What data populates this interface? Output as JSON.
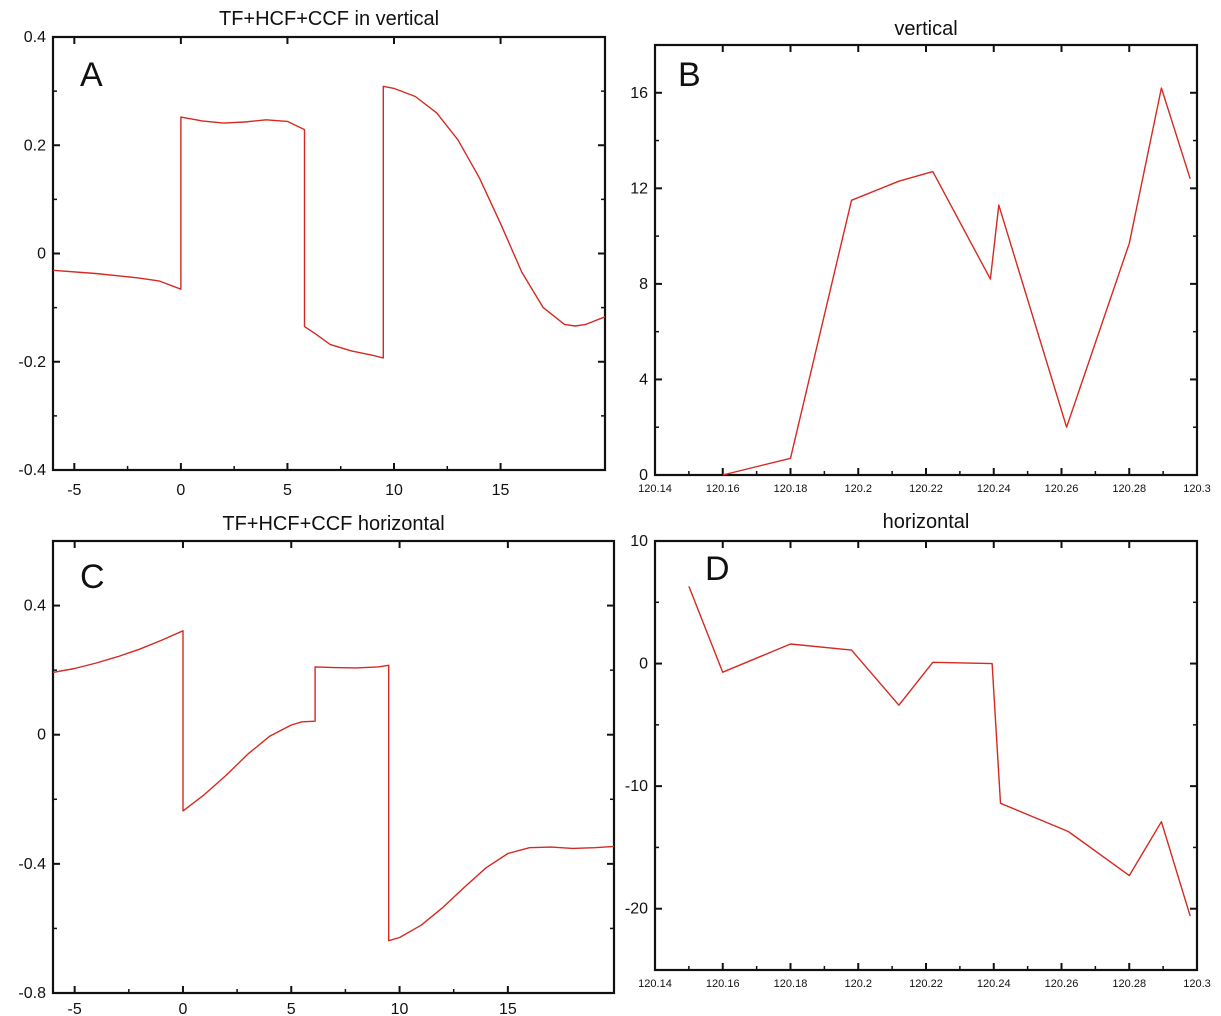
{
  "colors": {
    "line": "#d42a22",
    "axis": "#111111",
    "background": "#ffffff"
  },
  "chart_data": [
    {
      "panel": "A",
      "type": "line",
      "title": "TF+HCF+CCF in vertical",
      "xlabel": "",
      "ylabel": "",
      "xlim": [
        -6,
        19.9
      ],
      "ylim": [
        -0.4,
        0.4
      ],
      "xticks": [
        -5,
        0,
        5,
        10,
        15
      ],
      "yticks": [
        -0.4,
        -0.2,
        0,
        0.2,
        0.4
      ],
      "xtick_labels": [
        "-5",
        "0",
        "5",
        "10",
        "15"
      ],
      "ytick_labels": [
        "-0.4",
        "-0.2",
        "0",
        "0.2",
        "0.4"
      ],
      "grid": false,
      "series": [
        {
          "x": [
            -6,
            -4,
            -2,
            -1,
            0,
            0,
            1,
            2,
            3,
            4,
            5,
            5.8,
            5.8,
            6.3,
            7,
            8,
            9,
            9.5,
            9.5,
            10,
            11,
            12,
            13,
            14,
            15,
            16,
            17,
            18,
            18.5,
            19,
            19.9
          ],
          "y": [
            -0.031,
            -0.037,
            -0.045,
            -0.051,
            -0.066,
            0.252,
            0.245,
            0.241,
            0.243,
            0.247,
            0.244,
            0.229,
            -0.135,
            -0.148,
            -0.168,
            -0.18,
            -0.188,
            -0.193,
            0.309,
            0.305,
            0.29,
            0.26,
            0.21,
            0.14,
            0.055,
            -0.035,
            -0.1,
            -0.131,
            -0.134,
            -0.131,
            -0.117
          ]
        }
      ]
    },
    {
      "panel": "B",
      "type": "line",
      "title": "vertical",
      "xlabel": "",
      "ylabel": "",
      "xlim": [
        120.14,
        120.3
      ],
      "ylim": [
        0,
        18
      ],
      "xticks": [
        120.14,
        120.16,
        120.18,
        120.2,
        120.22,
        120.24,
        120.26,
        120.28,
        120.3
      ],
      "yticks": [
        0,
        4,
        8,
        12,
        16
      ],
      "xtick_labels": [
        "120.14",
        "120.16",
        "120.18",
        "120.2",
        "120.22",
        "120.24",
        "120.26",
        "120.28",
        "120.3"
      ],
      "ytick_labels": [
        "0",
        "4",
        "8",
        "12",
        "16"
      ],
      "grid": false,
      "series": [
        {
          "x": [
            120.16,
            120.18,
            120.198,
            120.212,
            120.222,
            120.239,
            120.2415,
            120.2615,
            120.28,
            120.2895,
            120.298
          ],
          "y": [
            0.0,
            0.7,
            11.5,
            12.3,
            12.7,
            8.2,
            11.3,
            2.0,
            9.7,
            16.2,
            12.4
          ]
        }
      ]
    },
    {
      "panel": "C",
      "type": "line",
      "title": "TF+HCF+CCF horizontal",
      "xlabel": "",
      "ylabel": "",
      "xlim": [
        -6,
        19.9
      ],
      "ylim": [
        -0.8,
        0.6
      ],
      "xticks": [
        -5,
        0,
        5,
        10,
        15
      ],
      "yticks": [
        -0.8,
        -0.4,
        0,
        0.4
      ],
      "xtick_labels": [
        "-5",
        "0",
        "5",
        "10",
        "15"
      ],
      "ytick_labels": [
        "-0.8",
        "-0.4",
        "0",
        "0.4"
      ],
      "grid": false,
      "series": [
        {
          "x": [
            -6,
            -5,
            -4,
            -3,
            -2,
            -1,
            0,
            0,
            1,
            2,
            3,
            4,
            5,
            5.5,
            6.1,
            6.1,
            7,
            8,
            9,
            9.5,
            9.5,
            10,
            11,
            12,
            13,
            14,
            15,
            16,
            17,
            18,
            19,
            19.9
          ],
          "y": [
            0.193,
            0.205,
            0.222,
            0.242,
            0.265,
            0.292,
            0.322,
            -0.236,
            -0.185,
            -0.125,
            -0.06,
            -0.005,
            0.03,
            0.04,
            0.042,
            0.21,
            0.208,
            0.207,
            0.21,
            0.215,
            -0.638,
            -0.628,
            -0.59,
            -0.535,
            -0.472,
            -0.412,
            -0.368,
            -0.35,
            -0.348,
            -0.352,
            -0.35,
            -0.346
          ]
        }
      ]
    },
    {
      "panel": "D",
      "type": "line",
      "title": "horizontal",
      "xlabel": "",
      "ylabel": "",
      "xlim": [
        120.14,
        120.3
      ],
      "ylim": [
        -25,
        10
      ],
      "xticks": [
        120.14,
        120.16,
        120.18,
        120.2,
        120.22,
        120.24,
        120.26,
        120.28,
        120.3
      ],
      "yticks": [
        -20,
        -10,
        0,
        10
      ],
      "xtick_labels": [
        "120.14",
        "120.16",
        "120.18",
        "120.2",
        "120.22",
        "120.24",
        "120.26",
        "120.28",
        "120.3"
      ],
      "ytick_labels": [
        "-20",
        "-10",
        "0",
        "10"
      ],
      "grid": false,
      "series": [
        {
          "x": [
            120.15,
            120.16,
            120.18,
            120.198,
            120.212,
            120.222,
            120.2395,
            120.242,
            120.262,
            120.28,
            120.2895,
            120.298
          ],
          "y": [
            6.3,
            -0.7,
            1.6,
            1.1,
            -3.4,
            0.1,
            0.0,
            -11.4,
            -13.7,
            -17.3,
            -12.9,
            -20.6
          ]
        }
      ]
    }
  ]
}
